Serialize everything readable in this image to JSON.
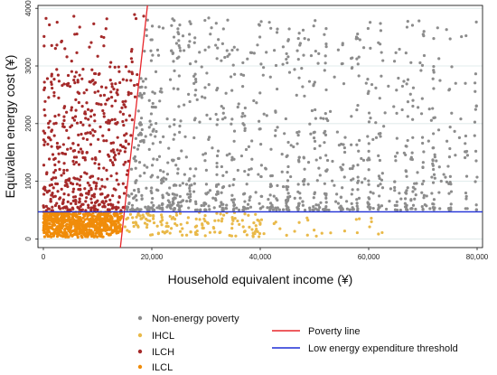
{
  "chart_data": {
    "type": "scatter",
    "title": "",
    "xlabel": "Household equivalent income (¥)",
    "ylabel": "Equivalen energy cost (¥)",
    "xlim": [
      -1000,
      81000
    ],
    "ylim": [
      -150,
      4050
    ],
    "x_ticks": [
      0,
      20000,
      40000,
      60000,
      80000
    ],
    "x_tick_labels": [
      "0",
      "20,000",
      "40,000",
      "60,000",
      "80,000"
    ],
    "y_ticks": [
      0,
      1000,
      2000,
      3000,
      4000
    ],
    "y_tick_labels": [
      "0",
      "1000",
      "2000",
      "3000",
      "4000"
    ],
    "grid": "horizontal",
    "legend_position": "bottom",
    "series": [
      {
        "name": "Non-energy poverty",
        "color": "#8c8c8c",
        "marker": "point"
      },
      {
        "name": "IHCL",
        "color": "#e9b949",
        "marker": "point"
      },
      {
        "name": "ILCH",
        "color": "#a52a2a",
        "marker": "point"
      },
      {
        "name": "ILCL",
        "color": "#f08c0a",
        "marker": "point"
      }
    ],
    "reference_lines": [
      {
        "name": "Poverty line",
        "color": "#e8262b",
        "type": "line",
        "points": [
          [
            14200,
            -150
          ],
          [
            19200,
            4050
          ]
        ]
      },
      {
        "name": "Low energy expenditure threshold",
        "color": "#1f2fd6",
        "type": "horizontal",
        "y": 470
      }
    ],
    "point_counts": {
      "Non-energy poverty": 1100,
      "IHCL": 170,
      "ILCH": 520,
      "ILCL": 680
    }
  }
}
